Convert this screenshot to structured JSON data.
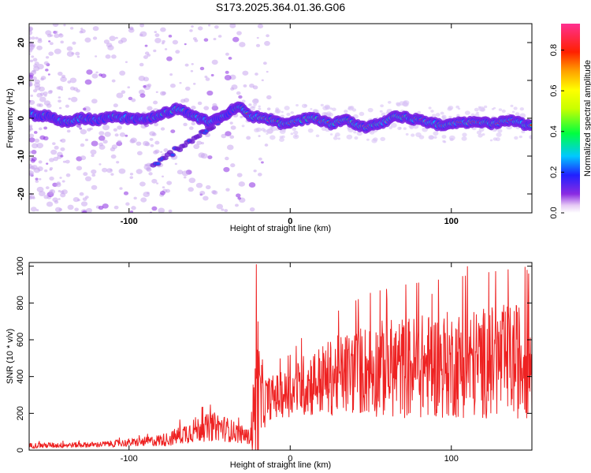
{
  "title": "S173.2025.364.01.36.G06",
  "chart_data": [
    {
      "type": "heatmap",
      "xlabel": "Height of straight line (km)",
      "ylabel": "Frequency (Hz)",
      "xlim": [
        -162,
        150
      ],
      "ylim": [
        -25,
        25
      ],
      "xticks": [
        -100,
        0,
        100
      ],
      "yticks": [
        -20,
        -10,
        0,
        10,
        20
      ],
      "colorbar": {
        "label": "Normalized spectral amplitude",
        "range": [
          0,
          0.93
        ],
        "ticks": [
          "0.0",
          "0.2",
          "0.4",
          "0.6",
          "0.8"
        ],
        "tick_values": [
          0,
          0.2,
          0.4,
          0.6,
          0.8
        ]
      },
      "ridge": {
        "description_points": [
          [
            -162,
            1.0
          ],
          [
            -150,
            0.5
          ],
          [
            -140,
            -1.0
          ],
          [
            -130,
            0.0
          ],
          [
            -120,
            -0.5
          ],
          [
            -110,
            0.5
          ],
          [
            -100,
            0.0
          ],
          [
            -90,
            -0.5
          ],
          [
            -80,
            1.0
          ],
          [
            -70,
            2.5
          ],
          [
            -60,
            0.5
          ],
          [
            -50,
            -1.0
          ],
          [
            -40,
            1.0
          ],
          [
            -32,
            3.5
          ],
          [
            -25,
            0.5
          ],
          [
            -15,
            0.0
          ],
          [
            -5,
            -1.5
          ],
          [
            5,
            -0.5
          ],
          [
            15,
            0.0
          ],
          [
            25,
            -1.5
          ],
          [
            35,
            -0.5
          ],
          [
            45,
            -2.5
          ],
          [
            55,
            -1.5
          ],
          [
            65,
            0.5
          ],
          [
            75,
            0.0
          ],
          [
            85,
            -1.0
          ],
          [
            95,
            -2.0
          ],
          [
            105,
            -1.0
          ],
          [
            115,
            -1.0
          ],
          [
            125,
            -1.5
          ],
          [
            135,
            -0.5
          ],
          [
            150,
            -2.0
          ]
        ],
        "branch": [
          [
            -85,
            -13
          ],
          [
            -70,
            -8
          ],
          [
            -55,
            -4
          ],
          [
            -45,
            -1
          ],
          [
            -35,
            3
          ]
        ]
      }
    },
    {
      "type": "line",
      "xlabel": "Height of straight line (km)",
      "ylabel": "SNR (10 * v/v)",
      "xlim": [
        -162,
        150
      ],
      "ylim": [
        0,
        1020
      ],
      "xticks": [
        -100,
        0,
        100
      ],
      "yticks": [
        0,
        200,
        400,
        600,
        800,
        1000
      ],
      "series": [
        {
          "color": "#ee2222",
          "envelope": [
            [
              -162,
              25,
              15
            ],
            [
              -120,
              30,
              15
            ],
            [
              -90,
              45,
              25
            ],
            [
              -75,
              60,
              40
            ],
            [
              -60,
              110,
              70
            ],
            [
              -45,
              130,
              80
            ],
            [
              -35,
              100,
              60
            ],
            [
              -25,
              70,
              40
            ],
            [
              -21,
              250,
              400
            ],
            [
              -15,
              280,
              120
            ],
            [
              0,
              310,
              130
            ],
            [
              10,
              360,
              180
            ],
            [
              20,
              380,
              200
            ],
            [
              35,
              420,
              230
            ],
            [
              50,
              440,
              260
            ],
            [
              70,
              450,
              280
            ],
            [
              90,
              460,
              290
            ],
            [
              110,
              470,
              300
            ],
            [
              130,
              480,
              310
            ],
            [
              150,
              490,
              320
            ]
          ],
          "spikes": [
            [
              -21,
              1010
            ],
            [
              -20,
              700
            ],
            [
              110,
              1000
            ],
            [
              147,
              980
            ],
            [
              148,
              960
            ],
            [
              60,
              820
            ],
            [
              88,
              850
            ]
          ]
        }
      ]
    }
  ]
}
